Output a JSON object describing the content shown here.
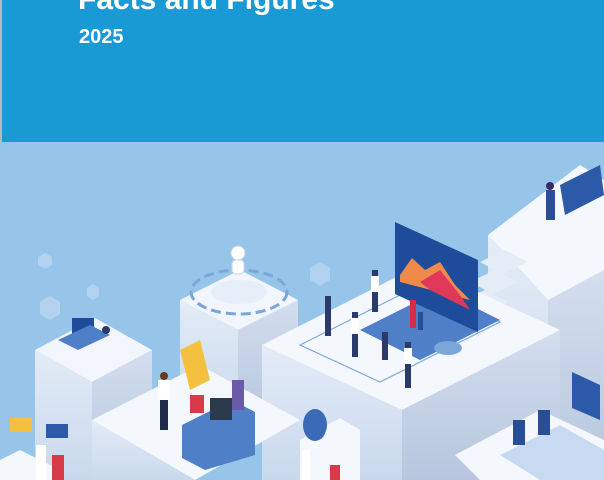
{
  "cover": {
    "title": "Facts and Figures",
    "year": "2025"
  },
  "colors": {
    "header_bg": "#1a9ad4",
    "illustration_bg": "#97c5ea",
    "text": "#ffffff"
  },
  "illustration": {
    "subject": "isometric-office-teamwork"
  }
}
